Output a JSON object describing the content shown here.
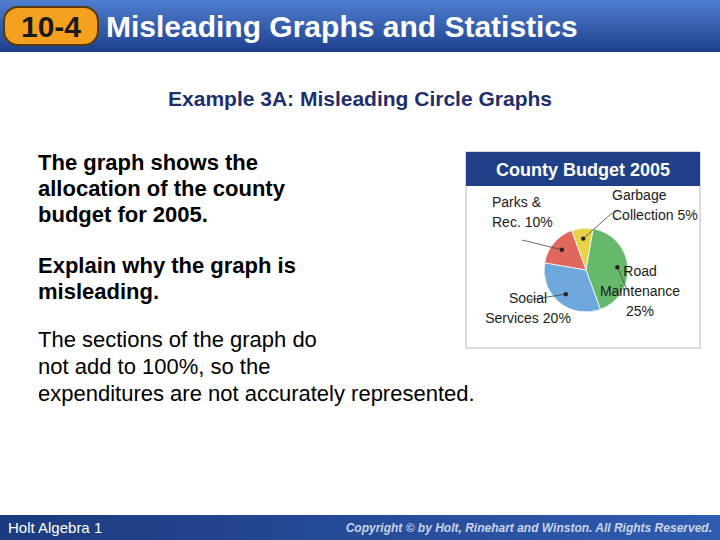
{
  "slide": {
    "section": "10-4",
    "header": "Misleading Graphs and Statistics",
    "example_title": "Example 3A: Misleading Circle Graphs",
    "intro": [
      "The graph shows the",
      "allocation of the county",
      "budget for 2005."
    ],
    "question": [
      "Explain why the graph is",
      "misleading."
    ],
    "answer": [
      "The sections of the graph do",
      "not add to 100%, so the",
      "expenditures are not accurately represented."
    ],
    "footer_left": "Holt Algebra 1",
    "footer_right": "Copyright © by Holt, Rinehart and Winston. All Rights Reserved."
  },
  "chart_data": {
    "type": "pie",
    "title": "County Budget 2005",
    "categories": [
      "Garbage Collection",
      "Road Maintenance",
      "Social Services",
      "Parks & Rec."
    ],
    "values": [
      5,
      25,
      20,
      10
    ],
    "value_labels": [
      "5%",
      "25%",
      "20%",
      "10%"
    ],
    "colors": [
      "#e6d348",
      "#66b96a",
      "#6fa8dc",
      "#e0675c"
    ],
    "data_labels": true
  }
}
